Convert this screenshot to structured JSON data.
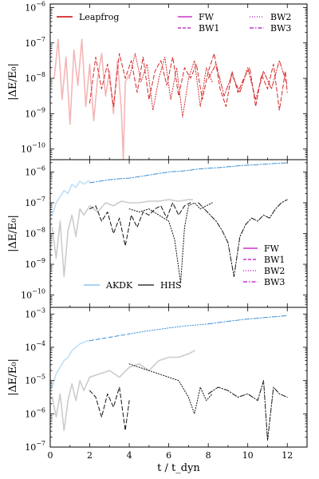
{
  "chart_data": [
    {
      "type": "line",
      "panel": "top",
      "ylabel": "|ΔE/E₀|",
      "yscale": "log",
      "ylim_log10": [
        -10.3,
        -5.9
      ],
      "xlim": [
        0,
        13
      ],
      "yticks": [
        {
          "exp": -10,
          "label": "−10"
        },
        {
          "exp": -9,
          "label": "−9"
        },
        {
          "exp": -8,
          "label": "−8"
        },
        {
          "exp": -7,
          "label": "−7"
        },
        {
          "exp": -6,
          "label": "−6"
        }
      ],
      "legend": {
        "left": [
          {
            "label": "Leapfrog",
            "color": "#d62728",
            "dash": "solid"
          }
        ],
        "right": [
          {
            "label": "FW",
            "color": "#cc33cc",
            "dash": "solid"
          },
          {
            "label": "BW1",
            "color": "#cc33cc",
            "dash": "dashed"
          },
          {
            "label": "BW2",
            "color": "#cc33cc",
            "dotted": true
          },
          {
            "label": "BW3",
            "color": "#cc33cc",
            "dashdot": true
          }
        ]
      },
      "series": [
        {
          "name": "Leapfrog",
          "color": "#f4b6b6",
          "width": 1.6,
          "style": "solid",
          "x": [
            0.2,
            0.4,
            0.6,
            0.8,
            1.0,
            1.2,
            1.4,
            1.6,
            1.8,
            2.0,
            2.2,
            2.4,
            2.6,
            2.8,
            3.0,
            3.2,
            3.4,
            3.6,
            3.7,
            3.8,
            4.0
          ],
          "y": [
            -8.0,
            -6.9,
            -8.6,
            -7.4,
            -9.3,
            -7.2,
            -8.2,
            -6.9,
            -8.8,
            -7.6,
            -9.2,
            -8.0,
            -7.3,
            -8.5,
            -7.8,
            -9.0,
            -7.5,
            -8.9,
            -10.3,
            -8.1,
            -7.9
          ]
        },
        {
          "name": "BW-dashed",
          "color": "#d62728",
          "width": 1.0,
          "style": "dashed",
          "x": [
            2.0,
            2.3,
            2.6,
            2.9,
            3.2,
            3.5,
            3.8,
            4.1,
            4.4,
            4.7,
            5.0,
            5.3,
            5.6,
            5.9,
            6.2,
            6.5,
            6.8,
            7.1,
            7.4,
            7.7,
            8.0,
            8.3,
            8.6,
            8.9,
            9.2,
            9.5,
            9.8,
            10.1,
            10.4,
            10.7,
            11.0,
            11.3,
            11.6,
            11.9,
            12.0
          ],
          "y": [
            -8.7,
            -7.4,
            -8.3,
            -7.6,
            -8.8,
            -7.3,
            -8.0,
            -7.5,
            -8.4,
            -7.4,
            -8.6,
            -7.8,
            -7.5,
            -8.2,
            -7.4,
            -8.5,
            -7.7,
            -8.0,
            -7.6,
            -8.6,
            -7.8,
            -7.3,
            -8.3,
            -8.8,
            -7.8,
            -8.4,
            -8.0,
            -7.7,
            -8.8,
            -7.9,
            -8.3,
            -7.6,
            -8.9,
            -7.8,
            -8.4
          ]
        },
        {
          "name": "BW-dotted",
          "color": "#d62728",
          "width": 1.0,
          "style": "dotted",
          "x": [
            4.0,
            4.3,
            4.6,
            4.9,
            5.2,
            5.5,
            5.8,
            6.1,
            6.4,
            6.7,
            7.0,
            7.3,
            7.6,
            7.9,
            8.2
          ],
          "y": [
            -8.0,
            -7.3,
            -8.1,
            -7.6,
            -8.9,
            -8.0,
            -7.4,
            -8.6,
            -7.7,
            -9.1,
            -8.0,
            -7.5,
            -8.8,
            -7.7,
            -8.1
          ]
        },
        {
          "name": "BW-dashdot",
          "color": "#d62728",
          "width": 1.0,
          "style": "dashdot",
          "x": [
            8.0,
            8.4,
            8.8,
            9.2,
            9.6,
            10.0,
            10.4,
            10.8,
            11.2,
            11.6,
            12.0
          ],
          "y": [
            -8.0,
            -7.6,
            -8.5,
            -7.9,
            -8.4,
            -7.7,
            -8.6,
            -7.8,
            -8.3,
            -7.5,
            -8.2
          ]
        }
      ]
    },
    {
      "type": "line",
      "panel": "middle",
      "ylabel": "|ΔE/E₀|",
      "yscale": "log",
      "ylim_log10": [
        -10.4,
        -5.6
      ],
      "xlim": [
        0,
        13
      ],
      "yticks": [
        {
          "exp": -10,
          "label": "−10"
        },
        {
          "exp": -9,
          "label": "−9"
        },
        {
          "exp": -8,
          "label": "−8"
        },
        {
          "exp": -7,
          "label": "−7"
        },
        {
          "exp": -6,
          "label": "−6"
        }
      ],
      "legend": {
        "left": [
          {
            "label": "AKDK",
            "color": "#9ecbef",
            "dash": "solid"
          },
          {
            "label": "HHS",
            "color": "#555555",
            "dash": "solid"
          }
        ],
        "right": [
          {
            "label": "FW",
            "color": "#cc33cc",
            "dash": "solid"
          },
          {
            "label": "BW1",
            "color": "#cc33cc",
            "dash": "dashed"
          },
          {
            "label": "BW2",
            "color": "#cc33cc",
            "dotted": true
          },
          {
            "label": "BW3",
            "color": "#cc33cc",
            "dashdot": true
          }
        ]
      },
      "series": [
        {
          "name": "AKDK",
          "color": "#bfe0f7",
          "width": 1.6,
          "style": "solid",
          "x": [
            0.1,
            0.3,
            0.5,
            0.7,
            0.9,
            1.1,
            1.3,
            1.5,
            1.7,
            1.9,
            2.0
          ],
          "y": [
            -7.4,
            -7.0,
            -6.8,
            -6.6,
            -6.7,
            -6.4,
            -6.5,
            -6.3,
            -6.4,
            -6.3,
            -6.3
          ]
        },
        {
          "name": "AKDK-BW",
          "color": "#3a8fd9",
          "width": 1.0,
          "style": "dashdot",
          "x": [
            2.0,
            2.5,
            3.0,
            3.5,
            4.0,
            4.5,
            5.0,
            5.5,
            6.0,
            6.5,
            7.0,
            7.5,
            8.0,
            8.5,
            9.0,
            9.5,
            10.0,
            10.5,
            11.0,
            11.5,
            12.0
          ],
          "y": [
            -6.35,
            -6.3,
            -6.25,
            -6.22,
            -6.2,
            -6.15,
            -6.1,
            -6.05,
            -6.0,
            -5.98,
            -5.95,
            -5.9,
            -5.88,
            -5.86,
            -5.83,
            -5.8,
            -5.78,
            -5.76,
            -5.74,
            -5.72,
            -5.7
          ]
        },
        {
          "name": "HHS",
          "color": "#cccccc",
          "width": 1.6,
          "style": "solid",
          "x": [
            0.1,
            0.3,
            0.5,
            0.7,
            0.9,
            1.1,
            1.3,
            1.5,
            1.7,
            2.0,
            2.4,
            2.8,
            3.2,
            3.6,
            4.0,
            4.5,
            5.0,
            5.5,
            6.0,
            6.5,
            7.0,
            7.2
          ],
          "y": [
            -7.8,
            -8.8,
            -7.6,
            -9.4,
            -7.9,
            -7.4,
            -8.1,
            -7.2,
            -7.4,
            -7.1,
            -7.3,
            -7.0,
            -7.1,
            -6.95,
            -7.0,
            -7.0,
            -6.95,
            -6.95,
            -6.9,
            -6.95,
            -6.9,
            -6.9
          ]
        },
        {
          "name": "HHS-BW-dashed",
          "color": "#111111",
          "width": 1.0,
          "style": "dashed",
          "x": [
            2.0,
            2.3,
            2.6,
            2.9,
            3.2,
            3.5,
            3.8,
            4.1,
            4.4,
            4.7,
            5.0,
            5.3,
            5.6,
            5.9,
            6.2,
            6.5,
            6.8,
            7.1
          ],
          "y": [
            -7.2,
            -7.1,
            -7.6,
            -7.3,
            -8.0,
            -7.5,
            -8.4,
            -7.4,
            -7.8,
            -7.3,
            -7.4,
            -7.2,
            -7.1,
            -7.5,
            -7.0,
            -7.4,
            -7.1,
            -7.0
          ]
        },
        {
          "name": "HHS-BW-dotted",
          "color": "#111111",
          "width": 1.0,
          "style": "dotted",
          "x": [
            4.0,
            4.5,
            5.0,
            5.5,
            6.0,
            6.3,
            6.6,
            6.8,
            7.0,
            7.3,
            7.6,
            7.9,
            8.2
          ],
          "y": [
            -7.2,
            -7.3,
            -7.2,
            -7.4,
            -7.6,
            -8.2,
            -9.6,
            -7.8,
            -7.1,
            -7.0,
            -7.2,
            -7.1,
            -7.0
          ]
        },
        {
          "name": "HHS-BW-dashdot",
          "color": "#111111",
          "width": 1.0,
          "style": "dashdot",
          "x": [
            7.5,
            7.8,
            8.1,
            8.4,
            8.7,
            9.0,
            9.3,
            9.6,
            9.9,
            10.2,
            10.5,
            10.8,
            11.1,
            11.4,
            11.7,
            12.0
          ],
          "y": [
            -7.0,
            -7.2,
            -7.4,
            -7.6,
            -7.9,
            -8.3,
            -9.4,
            -8.1,
            -7.7,
            -7.5,
            -7.6,
            -7.4,
            -7.5,
            -7.2,
            -7.0,
            -6.9
          ]
        }
      ]
    },
    {
      "type": "line",
      "panel": "bottom",
      "ylabel": "|ΔE/E₀|",
      "yscale": "log",
      "ylim_log10": [
        -7.0,
        -2.8
      ],
      "xlim": [
        0,
        13
      ],
      "xlabel": "t / t_dyn",
      "xticks": [
        0,
        2,
        4,
        6,
        8,
        10,
        12
      ],
      "yticks": [
        {
          "exp": -7,
          "label": "−7"
        },
        {
          "exp": -6,
          "label": "−6"
        },
        {
          "exp": -5,
          "label": "−5"
        },
        {
          "exp": -4,
          "label": "−4"
        },
        {
          "exp": -3,
          "label": "−3"
        }
      ],
      "series": [
        {
          "name": "AKDK",
          "color": "#bfe0f7",
          "width": 1.6,
          "style": "solid",
          "x": [
            0.1,
            0.3,
            0.5,
            0.7,
            0.9,
            1.1,
            1.3,
            1.5,
            1.7,
            1.9,
            2.0
          ],
          "y": [
            -5.2,
            -4.8,
            -4.6,
            -4.4,
            -4.3,
            -4.1,
            -4.0,
            -3.9,
            -3.85,
            -3.8,
            -3.8
          ]
        },
        {
          "name": "AKDK-BW-dashed",
          "color": "#3a8fd9",
          "width": 1.0,
          "style": "dashed",
          "x": [
            2.0,
            2.5,
            3.0,
            3.5,
            4.0
          ],
          "y": [
            -3.8,
            -3.75,
            -3.7,
            -3.65,
            -3.6
          ]
        },
        {
          "name": "AKDK-BW-dotted",
          "color": "#3a8fd9",
          "width": 1.0,
          "style": "dotted",
          "x": [
            4.0,
            5.0,
            6.0,
            7.0,
            8.0
          ],
          "y": [
            -3.6,
            -3.5,
            -3.42,
            -3.35,
            -3.3
          ]
        },
        {
          "name": "AKDK-BW-dashdot",
          "color": "#3a8fd9",
          "width": 1.0,
          "style": "dashdot",
          "x": [
            8.0,
            9.0,
            10.0,
            11.0,
            12.0
          ],
          "y": [
            -3.3,
            -3.22,
            -3.15,
            -3.1,
            -3.05
          ]
        },
        {
          "name": "HHS",
          "color": "#cccccc",
          "width": 1.6,
          "style": "solid",
          "x": [
            0.1,
            0.3,
            0.5,
            0.7,
            0.9,
            1.1,
            1.3,
            1.5,
            1.7,
            2.0,
            2.5,
            3.0,
            3.5,
            4.0,
            4.5,
            5.0,
            5.5,
            6.0,
            6.5,
            7.0,
            7.3
          ],
          "y": [
            -5.5,
            -6.1,
            -5.4,
            -6.5,
            -5.6,
            -5.1,
            -5.6,
            -5.0,
            -5.3,
            -4.9,
            -4.8,
            -4.7,
            -4.9,
            -4.6,
            -4.5,
            -4.7,
            -4.4,
            -4.3,
            -4.3,
            -4.2,
            -4.1
          ]
        },
        {
          "name": "HHS-BW-dashed",
          "color": "#111111",
          "width": 1.0,
          "style": "dashed",
          "x": [
            2.0,
            2.3,
            2.6,
            2.9,
            3.2,
            3.5,
            3.8,
            4.0
          ],
          "y": [
            -5.3,
            -5.5,
            -6.1,
            -5.4,
            -5.8,
            -5.2,
            -6.5,
            -5.6
          ]
        },
        {
          "name": "HHS-BW-dotted",
          "color": "#111111",
          "width": 1.0,
          "style": "dotted",
          "x": [
            4.0,
            4.5,
            5.0,
            5.5,
            6.0,
            6.5,
            7.0,
            7.3,
            7.6,
            7.9,
            8.2
          ],
          "y": [
            -4.5,
            -4.6,
            -4.7,
            -4.8,
            -4.9,
            -5.0,
            -5.5,
            -6.0,
            -5.2,
            -5.6,
            -5.4
          ]
        },
        {
          "name": "HHS-BW-dashdot",
          "color": "#111111",
          "width": 1.0,
          "style": "dashdot",
          "x": [
            8.0,
            8.5,
            9.0,
            9.5,
            10.0,
            10.5,
            10.8,
            11.0,
            11.3,
            11.6,
            12.0
          ],
          "y": [
            -5.4,
            -5.2,
            -5.3,
            -5.5,
            -5.4,
            -5.6,
            -5.0,
            -6.8,
            -5.2,
            -5.4,
            -5.5
          ]
        }
      ]
    }
  ]
}
